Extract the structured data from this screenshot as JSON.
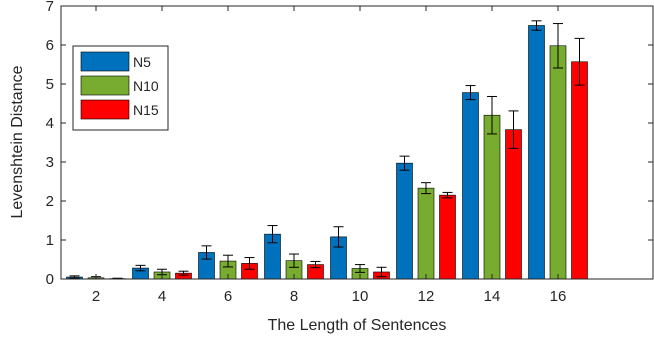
{
  "chart_data": {
    "type": "bar",
    "title": "",
    "xlabel": "The Length of Sentences",
    "ylabel": "Levenshtein Distance",
    "categories": [
      "2",
      "4",
      "6",
      "8",
      "10",
      "12",
      "14",
      "16"
    ],
    "ylim": [
      0,
      7
    ],
    "yticks": [
      "0",
      "1",
      "2",
      "3",
      "4",
      "5",
      "6",
      "7"
    ],
    "grid": false,
    "legend_position": "top-left",
    "error_bars": true,
    "series": [
      {
        "name": "N5",
        "color": "#0072BD",
        "values": [
          0.05,
          0.28,
          0.68,
          1.15,
          1.08,
          2.97,
          4.78,
          6.5
        ],
        "errors": [
          0.03,
          0.07,
          0.17,
          0.22,
          0.26,
          0.18,
          0.18,
          0.12
        ]
      },
      {
        "name": "N10",
        "color": "#77AC30",
        "values": [
          0.03,
          0.18,
          0.46,
          0.47,
          0.27,
          2.33,
          4.2,
          5.98
        ],
        "errors": [
          0.03,
          0.07,
          0.15,
          0.17,
          0.1,
          0.14,
          0.48,
          0.57
        ]
      },
      {
        "name": "N15",
        "color": "#FF0000",
        "values": [
          0.01,
          0.15,
          0.4,
          0.37,
          0.18,
          2.15,
          3.83,
          5.57
        ],
        "errors": [
          0.01,
          0.05,
          0.15,
          0.08,
          0.12,
          0.07,
          0.48,
          0.6
        ]
      }
    ]
  }
}
